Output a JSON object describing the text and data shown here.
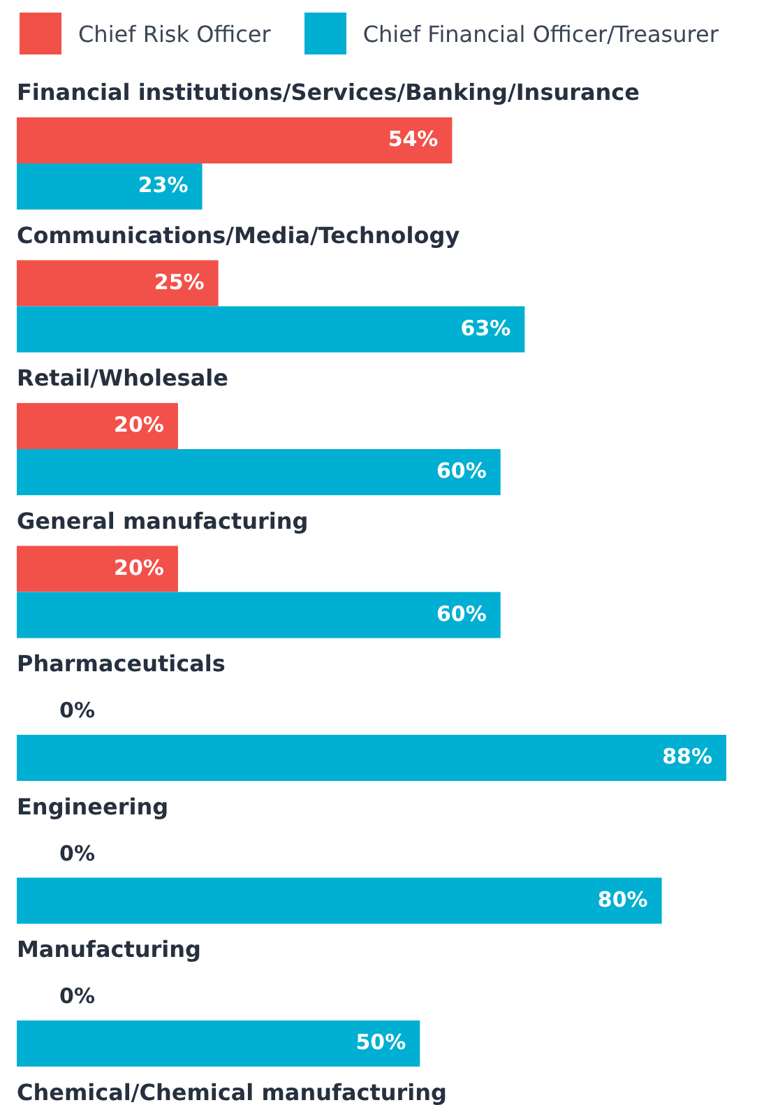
{
  "chart_data": {
    "type": "bar",
    "orientation": "horizontal",
    "legend": "top left",
    "categories": [
      "Financial institutions/Services/Banking/Insurance",
      "Communications/Media/Technology",
      "Retail/Wholesale",
      "General manufacturing",
      "Pharmaceuticals",
      "Engineering",
      "Manufacturing",
      "Chemical/Chemical manufacturing"
    ],
    "series": [
      {
        "name": "Chief Risk Officer",
        "color": "#f2514a",
        "values": [
          54,
          25,
          20,
          20,
          0,
          0,
          0,
          null
        ],
        "value_labels": [
          "54%",
          "25%",
          "20%",
          "20%",
          "0%",
          "0%",
          "0%",
          null
        ]
      },
      {
        "name": "Chief Financial Officer/Treasurer",
        "color": "#00afd1",
        "values": [
          23,
          63,
          60,
          60,
          88,
          80,
          50,
          null
        ],
        "value_labels": [
          "23%",
          "63%",
          "60%",
          "60%",
          "88%",
          "80%",
          "50%",
          null
        ]
      }
    ]
  }
}
